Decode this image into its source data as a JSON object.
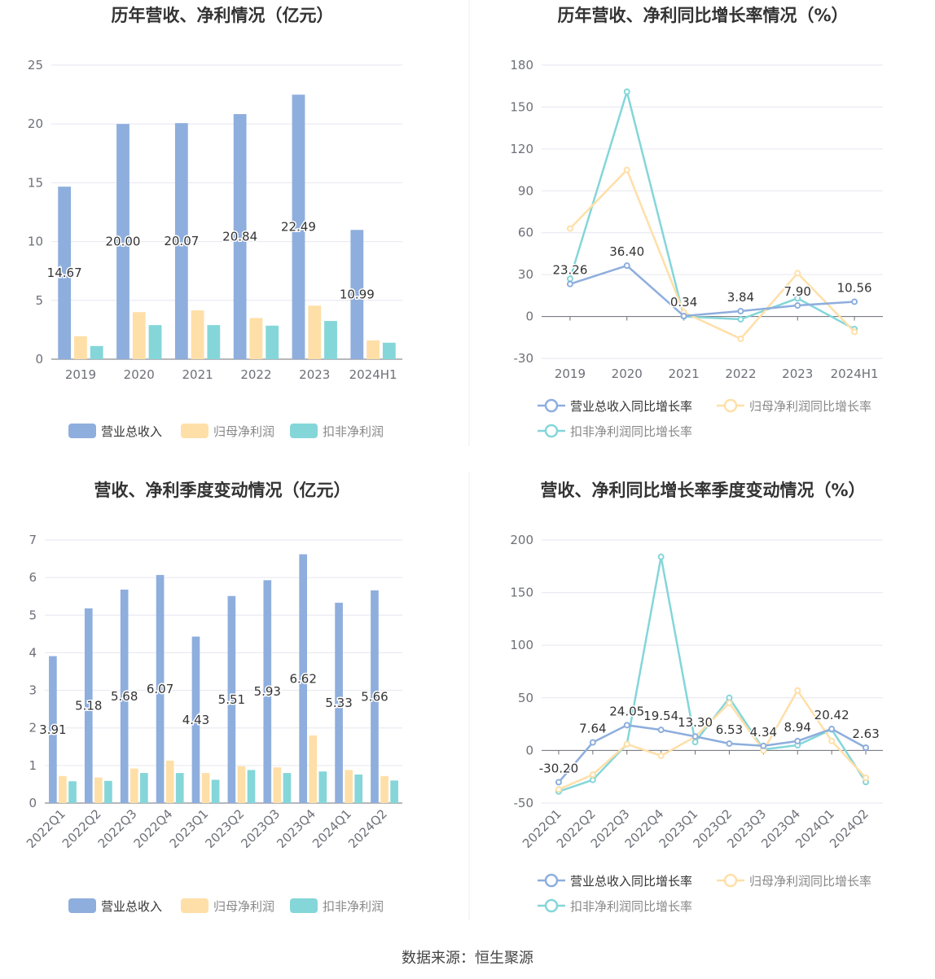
{
  "colors": {
    "revenue": "#8eaedd",
    "net_profit": "#ffdfa8",
    "deducted_profit": "#84d6d9"
  },
  "legend": {
    "bar": [
      "营业总收入",
      "归母净利润",
      "扣非净利润"
    ],
    "line": [
      "营业总收入同比增长率",
      "归母净利润同比增长率",
      "扣非净利润同比增长率"
    ]
  },
  "footer": {
    "source": "数据来源：恒生聚源"
  },
  "chart_data": [
    {
      "type": "bar",
      "title": "历年营收、净利情况（亿元）",
      "categories": [
        "2019",
        "2020",
        "2021",
        "2022",
        "2023",
        "2024H1"
      ],
      "ylim": [
        0,
        25
      ],
      "yticks": [
        "0",
        "5",
        "10",
        "15",
        "20",
        "25"
      ],
      "series": [
        {
          "name": "营业总收入",
          "values": [
            14.67,
            20.0,
            20.07,
            20.84,
            22.49,
            10.99
          ],
          "labels": [
            "14.67",
            "20.00",
            "20.07",
            "20.84",
            "22.49",
            "10.99"
          ]
        },
        {
          "name": "归母净利润",
          "values": [
            1.95,
            4.0,
            4.15,
            3.5,
            4.55,
            1.6
          ]
        },
        {
          "name": "扣非净利润",
          "values": [
            1.12,
            2.9,
            2.9,
            2.85,
            3.25,
            1.4
          ]
        }
      ]
    },
    {
      "type": "line",
      "title": "历年营收、净利同比增长率情况（%）",
      "categories": [
        "2019",
        "2020",
        "2021",
        "2022",
        "2023",
        "2024H1"
      ],
      "ylim": [
        -30,
        180
      ],
      "yticks": [
        "-30",
        "0",
        "30",
        "60",
        "90",
        "120",
        "150",
        "180"
      ],
      "series": [
        {
          "name": "营业总收入同比增长率",
          "values": [
            23.26,
            36.4,
            0.34,
            3.84,
            7.9,
            10.56
          ],
          "labels": [
            "23.26",
            "36.40",
            "0.34",
            "3.84",
            "7.90",
            "10.56"
          ]
        },
        {
          "name": "归母净利润同比增长率",
          "values": [
            63,
            105,
            3,
            -16,
            31,
            -11
          ]
        },
        {
          "name": "扣非净利润同比增长率",
          "values": [
            27,
            161,
            0,
            -2,
            13,
            -9
          ]
        }
      ]
    },
    {
      "type": "bar",
      "title": "营收、净利季度变动情况（亿元）",
      "categories": [
        "2022Q1",
        "2022Q2",
        "2022Q3",
        "2022Q4",
        "2023Q1",
        "2023Q2",
        "2023Q3",
        "2023Q4",
        "2024Q1",
        "2024Q2"
      ],
      "ylim": [
        0,
        7
      ],
      "yticks": [
        "0",
        "1",
        "2",
        "3",
        "4",
        "5",
        "6",
        "7"
      ],
      "series": [
        {
          "name": "营业总收入",
          "values": [
            3.91,
            5.18,
            5.68,
            6.07,
            4.43,
            5.51,
            5.93,
            6.62,
            5.33,
            5.66
          ],
          "labels": [
            "3.91",
            "5.18",
            "5.68",
            "6.07",
            "4.43",
            "5.51",
            "5.93",
            "6.62",
            "5.33",
            "5.66"
          ]
        },
        {
          "name": "归母净利润",
          "values": [
            0.72,
            0.68,
            0.92,
            1.13,
            0.8,
            0.98,
            0.95,
            1.8,
            0.88,
            0.72
          ]
        },
        {
          "name": "扣非净利润",
          "values": [
            0.58,
            0.59,
            0.8,
            0.8,
            0.62,
            0.88,
            0.8,
            0.84,
            0.76,
            0.6
          ]
        }
      ]
    },
    {
      "type": "line",
      "title": "营收、净利同比增长率季度变动情况（%）",
      "categories": [
        "2022Q1",
        "2022Q2",
        "2022Q3",
        "2022Q4",
        "2023Q1",
        "2023Q2",
        "2023Q3",
        "2023Q4",
        "2024Q1",
        "2024Q2"
      ],
      "ylim": [
        -50,
        200
      ],
      "yticks": [
        "-50",
        "0",
        "50",
        "100",
        "150",
        "200"
      ],
      "series": [
        {
          "name": "营业总收入同比增长率",
          "values": [
            -30.2,
            7.64,
            24.05,
            19.54,
            13.3,
            6.53,
            4.34,
            8.94,
            20.42,
            2.63
          ],
          "labels": [
            "-30.20",
            "7.64",
            "24.05",
            "19.54",
            "13.30",
            "6.53",
            "4.34",
            "8.94",
            "20.42",
            "2.63"
          ]
        },
        {
          "name": "归母净利润同比增长率",
          "values": [
            -37,
            -23,
            6,
            -5,
            13,
            45,
            0,
            57,
            9,
            -26
          ]
        },
        {
          "name": "扣非净利润同比增长率",
          "values": [
            -39,
            -28,
            6,
            184,
            8,
            50,
            1,
            5,
            20,
            -30
          ]
        }
      ]
    }
  ]
}
